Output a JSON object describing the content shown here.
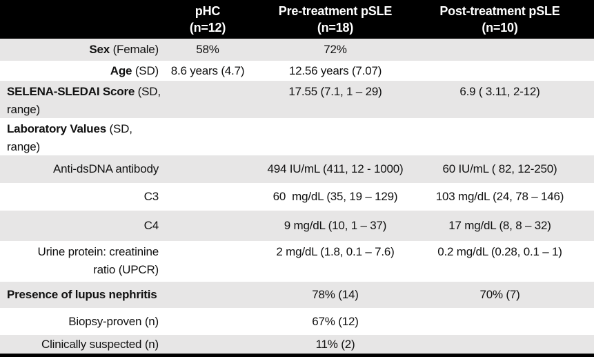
{
  "colors": {
    "header_bg": "#000000",
    "header_text": "#ffffff",
    "row_shade": "#e7e6e6",
    "body_bg": "#ffffff",
    "text": "#111111",
    "bottom_border": "#000000"
  },
  "table": {
    "columns": [
      {
        "label": "pHC",
        "n": "(n=12)"
      },
      {
        "label": "Pre-treatment pSLE",
        "n": "(n=18)"
      },
      {
        "label": "Post-treatment pSLE",
        "n": "(n=10)"
      }
    ],
    "rows": [
      {
        "bold": "Sex",
        "tail": " (Female)",
        "phc": "58%",
        "pre": "72%",
        "post": ""
      },
      {
        "bold": "Age",
        "tail": " (SD)",
        "phc": "8.6 years (4.7)",
        "pre": "12.56 years (7.07)",
        "post": ""
      },
      {
        "bold": "SELENA-SLEDAI Score",
        "tail": " (SD,",
        "line2": "range)",
        "phc": "",
        "pre": "17.55 (7.1, 1 – 29)",
        "post": "6.9 ( 3.11, 2-12)"
      },
      {
        "bold": "Laboratory Values",
        "tail": " (SD,",
        "line2": "range)",
        "phc": "",
        "pre": "",
        "post": ""
      },
      {
        "tail": "Anti-dsDNA antibody",
        "phc": "",
        "pre": "494 IU/mL (411, 12 - 1000)",
        "post": "60 IU/mL ( 82, 12-250)"
      },
      {
        "tail": "C3",
        "phc": "",
        "pre": "60  mg/dL (35, 19 – 129)",
        "post": "103 mg/dL (24, 78 – 146)"
      },
      {
        "tail": "C4",
        "phc": "",
        "pre": "9 mg/dL (10, 1 – 37)",
        "post": "17 mg/dL (8, 8 – 32)"
      },
      {
        "tail": "Urine protein: creatinine",
        "line2": "ratio (UPCR)",
        "phc": "",
        "pre": "2 mg/dL (1.8, 0.1 – 7.6)",
        "post": "0.2 mg/dL (0.28, 0.1 – 1)"
      },
      {
        "bold": "Presence of lupus nephritis",
        "phc": "",
        "pre": "78% (14)",
        "post": "70% (7)"
      },
      {
        "tail": "Biopsy-proven (n)",
        "phc": "",
        "pre": "67% (12)",
        "post": ""
      },
      {
        "tail": "Clinically suspected (n)",
        "phc": "",
        "pre": "11% (2)",
        "post": ""
      }
    ]
  }
}
